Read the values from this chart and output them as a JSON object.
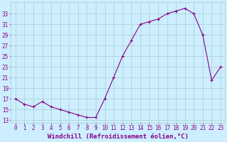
{
  "hours": [
    0,
    1,
    2,
    3,
    4,
    5,
    6,
    7,
    8,
    9,
    10,
    11,
    12,
    13,
    14,
    15,
    16,
    17,
    18,
    19,
    20,
    21,
    22,
    23
  ],
  "values": [
    17,
    16,
    15.5,
    16.5,
    15.5,
    15,
    14.5,
    14,
    13.5,
    13.5,
    17,
    21,
    25,
    28,
    31,
    31.5,
    32,
    33,
    33.5,
    34,
    33,
    29,
    20.5,
    23
  ],
  "line_color": "#880088",
  "marker": "+",
  "bg_color": "#cceeff",
  "grid_color": "#aacccc",
  "xlabel": "Windchill (Refroidissement éolien,°C)",
  "xlabel_color": "#880088",
  "xlabel_fontsize": 6.5,
  "ylabel_ticks": [
    13,
    15,
    17,
    19,
    21,
    23,
    25,
    27,
    29,
    31,
    33
  ],
  "xlim": [
    -0.5,
    23.5
  ],
  "ylim": [
    12.5,
    35.2
  ],
  "tick_color": "#880088",
  "tick_fontsize": 5.5,
  "xtick_labels": [
    "0",
    "1",
    "2",
    "3",
    "4",
    "5",
    "6",
    "7",
    "8",
    "9",
    "10",
    "11",
    "12",
    "13",
    "14",
    "15",
    "16",
    "17",
    "18",
    "19",
    "20",
    "21",
    "22",
    "23"
  ]
}
